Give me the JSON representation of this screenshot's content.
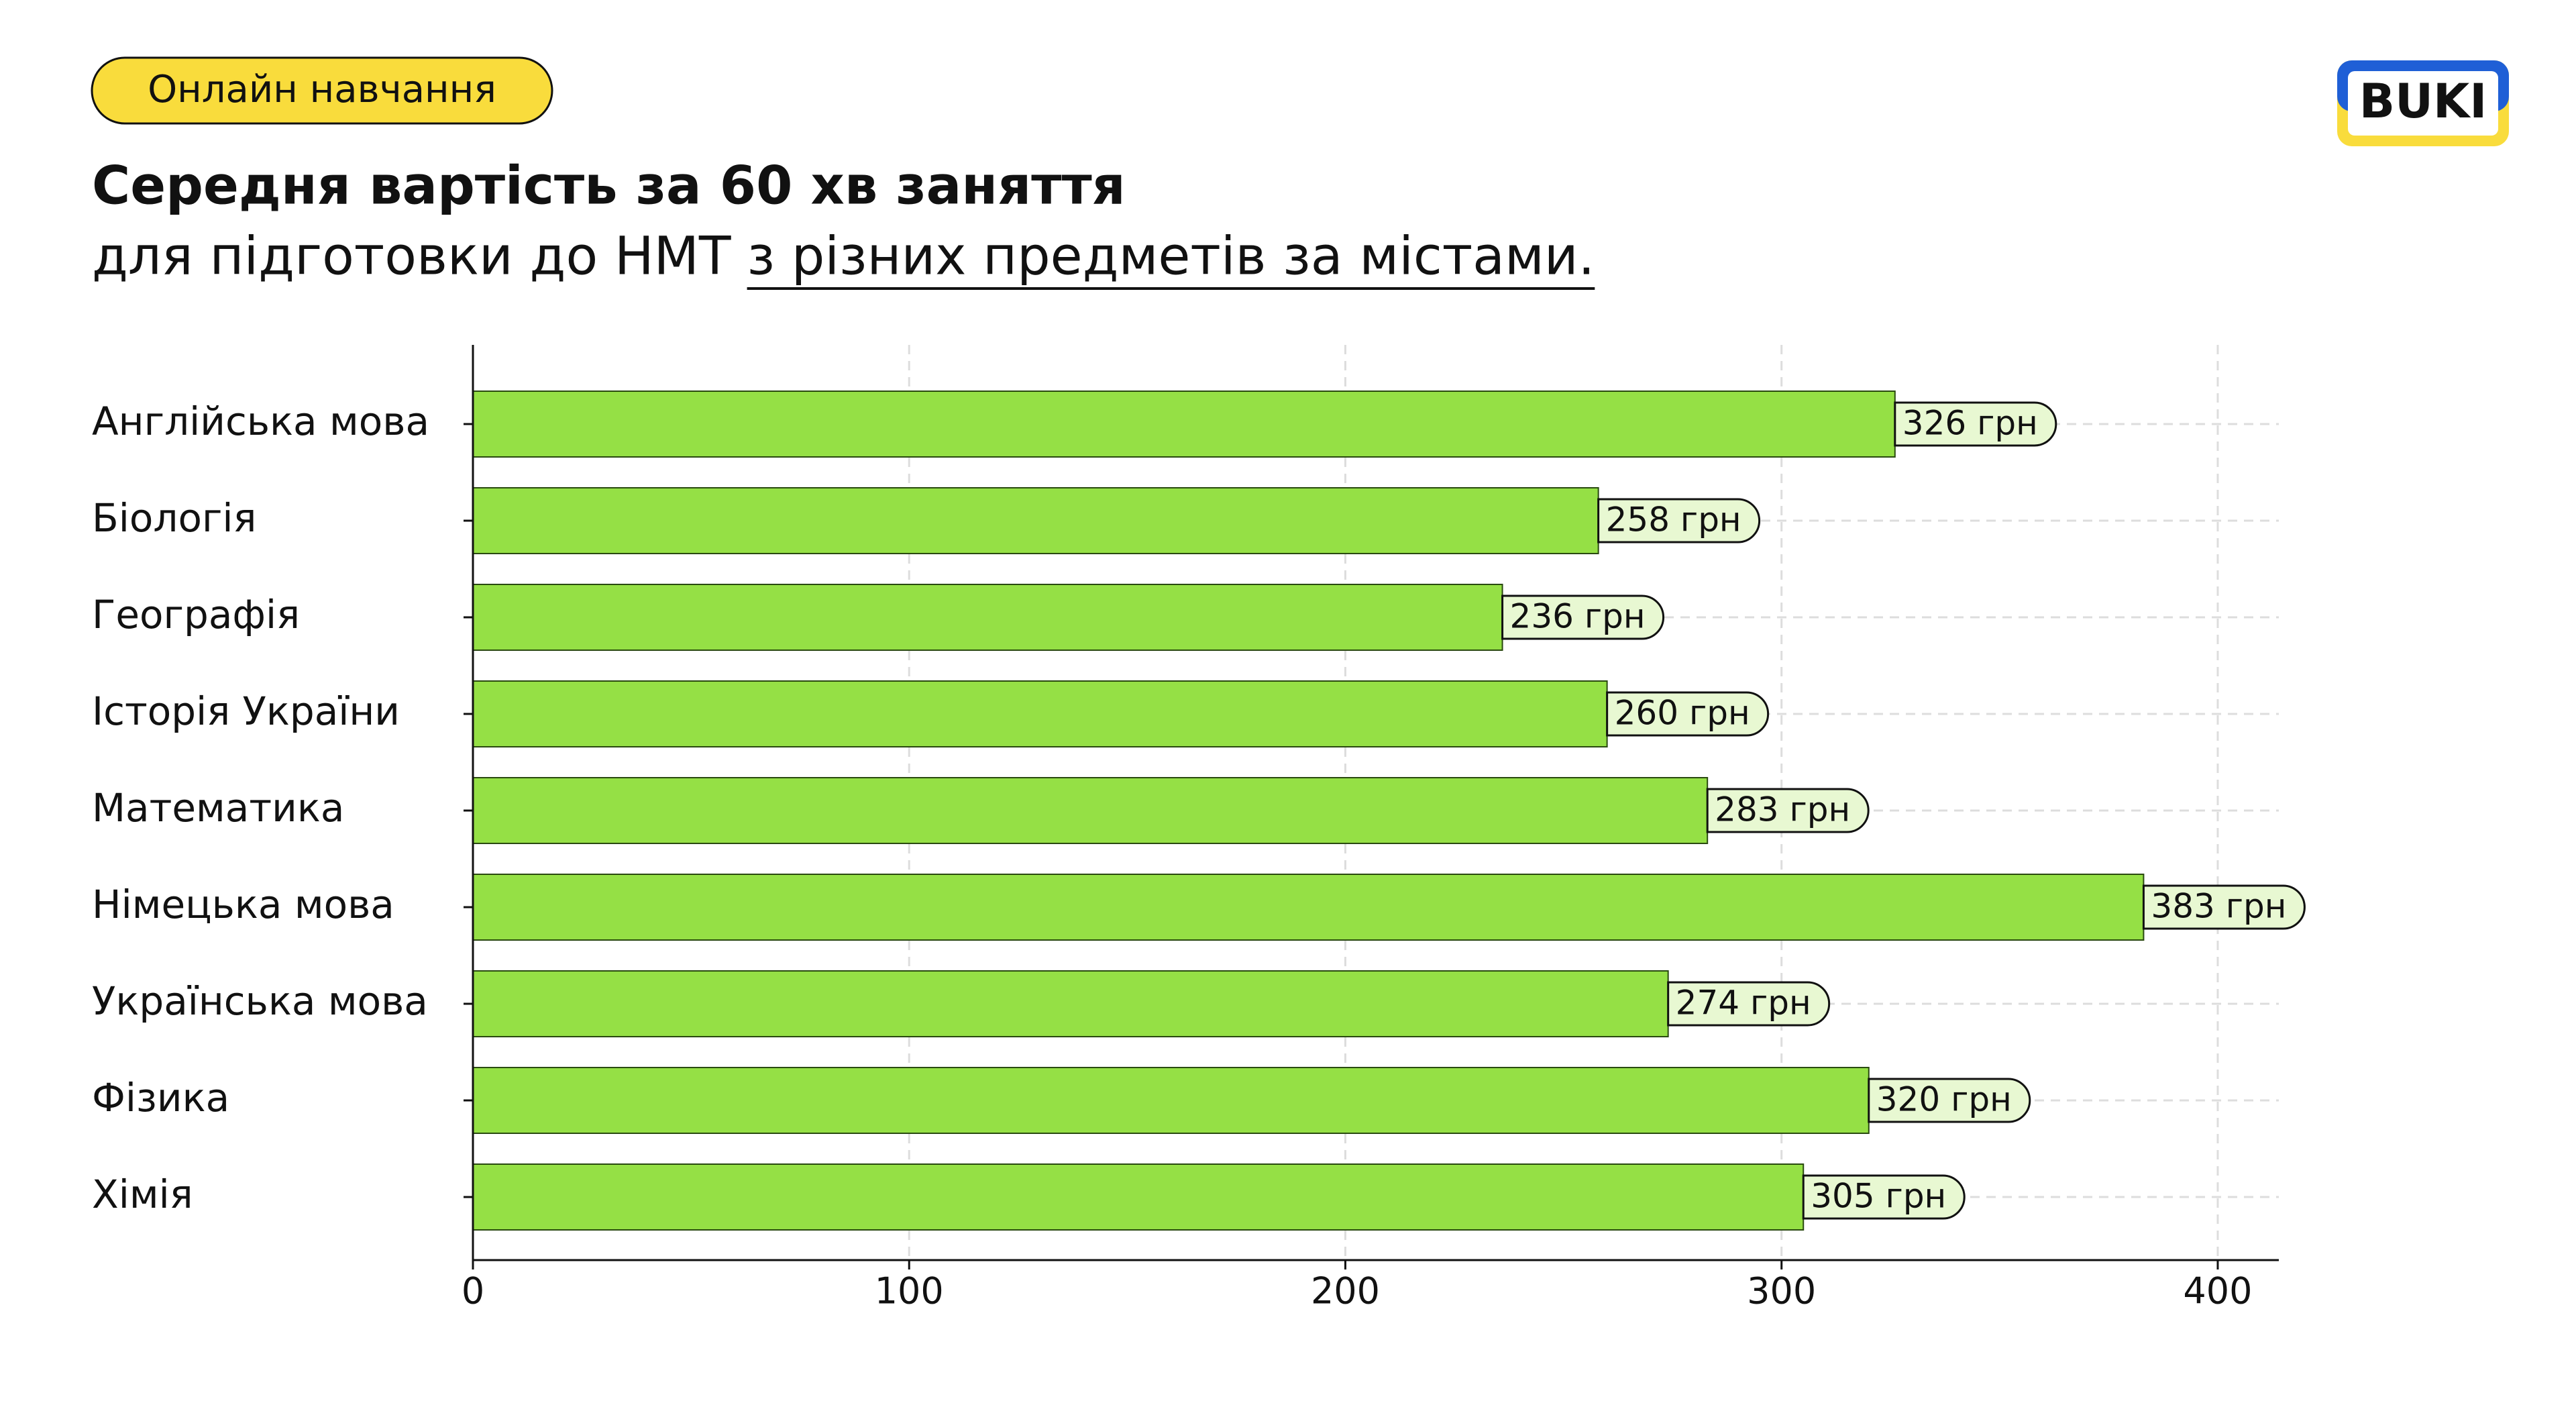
{
  "badge": "Онлайн навчання",
  "logo": "BUKI",
  "chart_data": {
    "type": "bar",
    "orientation": "horizontal",
    "title": "Середня вартість за 60 хв заняття",
    "subtitle": "для підготовки до НМТ",
    "subtitle_emphasis": "з різних предметів за містами.",
    "categories": [
      "Англійська мова",
      "Біологія",
      "Географія",
      "Історія України",
      "Математика",
      "Німецька мова",
      "Українська мова",
      "Фізика",
      "Хімія"
    ],
    "values": [
      326,
      258,
      236,
      260,
      283,
      383,
      274,
      320,
      305
    ],
    "value_labels": [
      "326 грн",
      "258 грн",
      "236 грн",
      "260 грн",
      "283 грн",
      "383 грн",
      "274 грн",
      "320 грн",
      "305 грн"
    ],
    "color": "#95e045",
    "label_color": "#e8f8d2",
    "xlim": [
      0,
      414
    ],
    "xticks": [
      0,
      100,
      200,
      300,
      400
    ],
    "grid": true
  }
}
